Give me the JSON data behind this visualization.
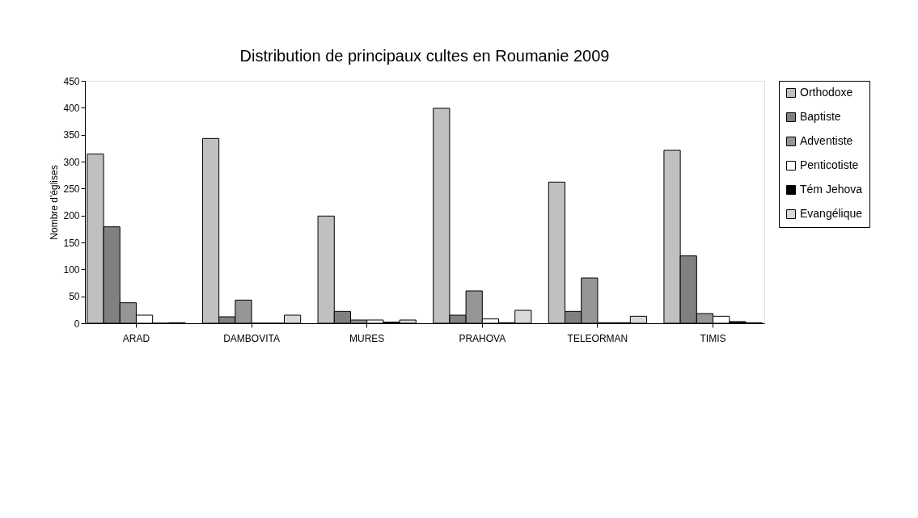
{
  "chart_data": {
    "type": "bar",
    "title": "Distribution de principaux cultes en Roumanie 2009",
    "ylabel": "Nombre d'églises",
    "categories": [
      "ARAD",
      "DAMBOVITA",
      "MURES",
      "PRAHOVA",
      "TELEORMAN",
      "TIMIS"
    ],
    "series": [
      {
        "name": "Orthodoxe",
        "color": "#c0c0c0",
        "values": [
          314,
          343,
          199,
          399,
          262,
          321
        ]
      },
      {
        "name": "Baptiste",
        "color": "#808080",
        "values": [
          179,
          12,
          22,
          15,
          22,
          125
        ]
      },
      {
        "name": "Adventiste",
        "color": "#969696",
        "values": [
          38,
          43,
          6,
          60,
          84,
          18
        ]
      },
      {
        "name": "Penticotiste",
        "color": "#ffffff",
        "values": [
          15,
          0,
          6,
          8,
          1,
          13
        ]
      },
      {
        "name": "Tém Jehova",
        "color": "#000000",
        "values": [
          0,
          0,
          2,
          1,
          1,
          3
        ]
      },
      {
        "name": "Evangélique",
        "color": "#d9d9d9",
        "values": [
          1,
          15,
          6,
          24,
          13,
          1
        ]
      }
    ],
    "ylim": [
      0,
      450
    ],
    "yticks": [
      0,
      50,
      100,
      150,
      200,
      250,
      300,
      350,
      400,
      450
    ],
    "grid": false,
    "legend": "right"
  }
}
